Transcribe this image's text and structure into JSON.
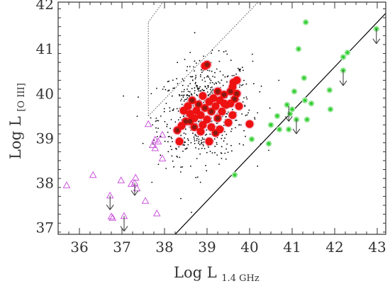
{
  "chart_data": {
    "type": "scatter",
    "title": "",
    "xlabel": {
      "main": "Log L",
      "subscript": "1.4 GHz"
    },
    "ylabel": {
      "main": "Log L",
      "subscript": "[O III]"
    },
    "xlim": [
      35.5,
      43.2
    ],
    "ylim": [
      36.85,
      42.05
    ],
    "x_ticks": [
      "36",
      "37",
      "38",
      "39",
      "40",
      "41",
      "42",
      "43"
    ],
    "y_ticks": [
      "37",
      "38",
      "39",
      "40",
      "41",
      "42"
    ],
    "x_tick_values": [
      36,
      37,
      38,
      39,
      40,
      41,
      42,
      43
    ],
    "y_tick_values": [
      37,
      38,
      39,
      40,
      41,
      42
    ],
    "colors": {
      "axes": "#333333",
      "background_dots": "#000000",
      "red_fill": "#ee1111",
      "red_core": "#8a1a10",
      "red_halo": "#f2b8cc",
      "triangles": "#cc55dd",
      "stars": "#22cc22",
      "star_halo": "#c8f0c8",
      "line": "#000000",
      "dotted": "#555555"
    },
    "diagonal_line": {
      "x": [
        38.25,
        43.25
      ],
      "y": [
        36.85,
        41.85
      ]
    },
    "dotted_envelope": {
      "left_x": 37.62,
      "left_y": [
        39.5,
        41.6
      ],
      "upper_x": [
        37.62,
        37.96
      ],
      "upper_y": [
        41.6,
        42.05
      ],
      "lower_x": [
        37.62,
        40.2
      ],
      "lower_y": [
        39.5,
        42.05
      ]
    },
    "background_cloud": {
      "center_x": 38.95,
      "center_y": 39.6,
      "spread_x": 0.55,
      "spread_y": 0.55,
      "count": 680
    },
    "red_core": [
      [
        38.3,
        39.18
      ],
      [
        38.4,
        39.28
      ],
      [
        38.35,
        38.93
      ],
      [
        38.5,
        39.38
      ],
      [
        38.6,
        39.55
      ],
      [
        38.55,
        39.72
      ],
      [
        38.65,
        39.85
      ],
      [
        38.7,
        39.45
      ],
      [
        38.75,
        39.62
      ],
      [
        38.8,
        39.76
      ],
      [
        38.85,
        39.52
      ],
      [
        38.9,
        39.95
      ],
      [
        38.95,
        39.68
      ],
      [
        39.0,
        39.42
      ],
      [
        39.05,
        39.82
      ],
      [
        39.1,
        39.6
      ],
      [
        39.15,
        39.9
      ],
      [
        39.2,
        39.72
      ],
      [
        39.25,
        39.45
      ],
      [
        39.3,
        39.85
      ],
      [
        39.35,
        39.6
      ],
      [
        39.4,
        39.98
      ],
      [
        39.45,
        39.75
      ],
      [
        39.5,
        39.35
      ],
      [
        39.55,
        40.05
      ],
      [
        39.6,
        40.15
      ],
      [
        39.62,
        40.25
      ],
      [
        39.65,
        39.88
      ],
      [
        39.7,
        40.3
      ],
      [
        39.4,
        39.78
      ],
      [
        39.0,
        40.65
      ],
      [
        38.95,
        40.62
      ],
      [
        39.05,
        38.93
      ],
      [
        39.2,
        39.12
      ],
      [
        39.55,
        39.78
      ],
      [
        40.0,
        39.32
      ],
      [
        38.7,
        39.25
      ],
      [
        38.85,
        39.15
      ],
      [
        39.1,
        39.25
      ],
      [
        38.6,
        39.38
      ],
      [
        39.3,
        39.2
      ],
      [
        38.9,
        39.3
      ],
      [
        39.7,
        40.0
      ],
      [
        38.45,
        39.62
      ],
      [
        39.6,
        39.52
      ],
      [
        39.25,
        40.05
      ],
      [
        39.75,
        39.72
      ]
    ],
    "triangles": [
      [
        35.7,
        37.95
      ],
      [
        36.32,
        38.18
      ],
      [
        36.72,
        37.72
      ],
      [
        36.75,
        37.25
      ],
      [
        36.78,
        37.22
      ],
      [
        36.98,
        38.06
      ],
      [
        37.05,
        37.26
      ],
      [
        37.22,
        37.98
      ],
      [
        37.32,
        38.12
      ],
      [
        37.35,
        37.88
      ],
      [
        37.3,
        38.0
      ],
      [
        37.62,
        39.32
      ],
      [
        37.72,
        38.85
      ],
      [
        37.78,
        38.97
      ],
      [
        37.95,
        39.08
      ],
      [
        37.95,
        38.55
      ],
      [
        37.78,
        38.78
      ],
      [
        37.85,
        38.93
      ],
      [
        37.82,
        37.32
      ],
      [
        37.55,
        37.6
      ]
    ],
    "triangle_arrows": [
      {
        "x": 36.72,
        "from": 37.72,
        "to": 37.4
      },
      {
        "x": 37.05,
        "from": 37.26,
        "to": 36.92
      },
      {
        "x": 37.3,
        "from": 38.0,
        "to": 37.72
      }
    ],
    "stars": [
      [
        39.65,
        38.18
      ],
      [
        40.05,
        38.98
      ],
      [
        40.45,
        38.88
      ],
      [
        40.5,
        39.3
      ],
      [
        40.65,
        39.5
      ],
      [
        40.7,
        39.2
      ],
      [
        40.88,
        39.75
      ],
      [
        40.92,
        39.2
      ],
      [
        40.95,
        39.55
      ],
      [
        41.0,
        39.65
      ],
      [
        41.05,
        40.05
      ],
      [
        41.1,
        39.42
      ],
      [
        41.15,
        41.0
      ],
      [
        41.32,
        41.6
      ],
      [
        41.3,
        39.85
      ],
      [
        41.35,
        39.42
      ],
      [
        41.45,
        39.78
      ],
      [
        41.88,
        40.08
      ],
      [
        41.9,
        39.65
      ],
      [
        42.2,
        40.82
      ],
      [
        42.2,
        40.52
      ],
      [
        42.3,
        40.92
      ],
      [
        42.98,
        41.45
      ],
      [
        41.28,
        40.35
      ]
    ],
    "star_arrows": [
      {
        "x": 40.92,
        "from": 39.72,
        "to": 39.38
      },
      {
        "x": 41.1,
        "from": 39.42,
        "to": 39.1
      },
      {
        "x": 42.2,
        "from": 40.52,
        "to": 40.18
      },
      {
        "x": 42.98,
        "from": 41.45,
        "to": 41.12
      }
    ]
  }
}
